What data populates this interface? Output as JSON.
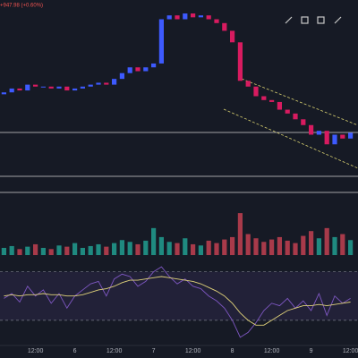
{
  "chart_data": {
    "type": "candlestick",
    "change_label": "+947.98 (+0.60%)",
    "categories": [
      null,
      null,
      null,
      null,
      "12:00",
      null,
      null,
      null,
      null,
      "6",
      null,
      null,
      null,
      null,
      "12:00",
      null,
      null,
      null,
      null,
      "7",
      null,
      null,
      null,
      null,
      "12:00",
      null,
      null,
      null,
      null,
      "8",
      null,
      null,
      null,
      null,
      "12:00",
      null,
      null,
      null,
      null,
      "9",
      null,
      null,
      null,
      null,
      "12:00"
    ],
    "open": [
      51,
      52,
      54,
      53,
      56,
      55,
      55,
      54,
      55,
      53,
      54,
      55,
      56,
      57,
      56,
      59,
      62,
      65,
      63,
      65,
      67,
      90,
      92,
      90,
      93,
      91,
      92,
      90,
      88,
      84,
      78,
      58,
      55,
      50,
      48,
      47,
      43,
      41,
      38,
      35,
      30,
      32,
      25,
      30,
      28
    ],
    "close": [
      52,
      54,
      53,
      56,
      55,
      55,
      54,
      55,
      53,
      54,
      55,
      56,
      57,
      56,
      59,
      62,
      65,
      63,
      65,
      67,
      90,
      92,
      90,
      93,
      91,
      92,
      90,
      88,
      84,
      78,
      58,
      55,
      50,
      48,
      47,
      43,
      41,
      38,
      35,
      30,
      32,
      25,
      30,
      28,
      31
    ],
    "volume": [
      12,
      15,
      10,
      14,
      18,
      12,
      10,
      16,
      14,
      20,
      12,
      15,
      18,
      14,
      20,
      25,
      22,
      18,
      24,
      45,
      30,
      22,
      20,
      28,
      18,
      16,
      24,
      20,
      26,
      30,
      70,
      35,
      28,
      22,
      26,
      30,
      24,
      20,
      32,
      40,
      28,
      45,
      30,
      35,
      25
    ],
    "rsi": [
      48,
      52,
      45,
      58,
      50,
      55,
      44,
      52,
      40,
      50,
      55,
      60,
      62,
      50,
      64,
      68,
      66,
      58,
      62,
      70,
      74,
      66,
      60,
      64,
      58,
      56,
      50,
      46,
      40,
      30,
      16,
      20,
      28,
      38,
      44,
      42,
      48,
      40,
      46,
      38,
      52,
      34,
      50,
      44,
      48
    ],
    "rsi_ma": [
      50,
      51,
      50,
      51,
      51,
      52,
      51,
      51,
      50,
      50,
      51,
      53,
      55,
      56,
      58,
      61,
      63,
      63,
      64,
      65,
      66,
      65,
      64,
      63,
      62,
      60,
      57,
      54,
      50,
      44,
      36,
      30,
      26,
      26,
      30,
      34,
      38,
      40,
      42,
      42,
      43,
      42,
      43,
      44,
      45
    ],
    "ylim": [
      0,
      100
    ],
    "volume_ylim": [
      0,
      100
    ],
    "rsi_ylim": [
      10,
      80
    ],
    "rsi_band": [
      30,
      70
    ],
    "up_color": "#3d5afe",
    "down_color": "#d81b60",
    "volume_up_color": "#1f8a80",
    "volume_down_color": "#a83a4a",
    "rsi_color": "#7e57c2",
    "rsi_ma_color": "#e0d27a"
  }
}
